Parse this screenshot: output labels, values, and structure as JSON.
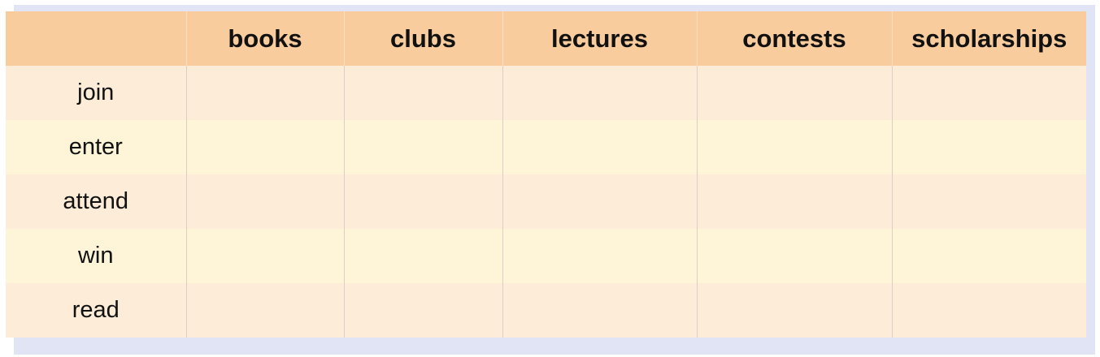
{
  "table": {
    "columns": [
      "",
      "books",
      "clubs",
      "lectures",
      "contests",
      "scholarships"
    ],
    "rows": [
      "join",
      "enter",
      "attend",
      "win",
      "read"
    ],
    "colors": {
      "header": "#f9cc9d",
      "row_odd": "#fdecd8",
      "row_even": "#fef4d7",
      "frame": "#e1e4f4"
    }
  }
}
